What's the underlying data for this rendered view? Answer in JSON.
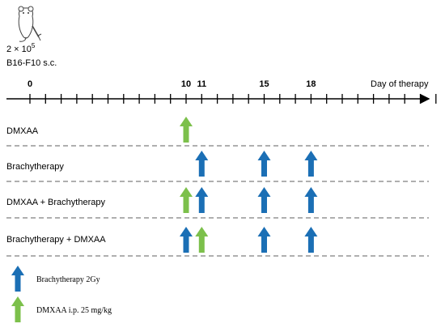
{
  "injection": {
    "dose_base": "2 × 10",
    "dose_exp": "5",
    "cells": "B16-F10 s.c."
  },
  "timeline": {
    "axis_label": "Day of therapy",
    "day_start": 0,
    "day_end": 26,
    "labeled_days": [
      {
        "day": 0,
        "label": "0"
      },
      {
        "day": 10,
        "label": "10"
      },
      {
        "day": 11,
        "label": "11"
      },
      {
        "day": 15,
        "label": "15"
      },
      {
        "day": 18,
        "label": "18"
      }
    ]
  },
  "groups": [
    {
      "label": "DMXAA",
      "arrows": [
        {
          "day": 10,
          "type": "dmxaa"
        }
      ]
    },
    {
      "label": "Brachytherapy",
      "arrows": [
        {
          "day": 11,
          "type": "brachy"
        },
        {
          "day": 15,
          "type": "brachy"
        },
        {
          "day": 18,
          "type": "brachy"
        }
      ]
    },
    {
      "label": "DMXAA + Brachytherapy",
      "arrows": [
        {
          "day": 10,
          "type": "dmxaa"
        },
        {
          "day": 11,
          "type": "brachy"
        },
        {
          "day": 15,
          "type": "brachy"
        },
        {
          "day": 18,
          "type": "brachy"
        }
      ]
    },
    {
      "label": "Brachytherapy + DMXAA",
      "arrows": [
        {
          "day": 10,
          "type": "brachy"
        },
        {
          "day": 11,
          "type": "dmxaa"
        },
        {
          "day": 15,
          "type": "brachy"
        },
        {
          "day": 18,
          "type": "brachy"
        }
      ]
    }
  ],
  "legend": [
    {
      "type": "brachy",
      "label": "Brachytherapy 2Gy"
    },
    {
      "type": "dmxaa",
      "label": "DMXAA i.p. 25 mg/kg"
    }
  ],
  "colors": {
    "brachy": "#1b6fb5",
    "dmxaa": "#7cc04b",
    "line": "#000000",
    "separator": "#7f7f7f"
  },
  "icon": "mouse-syringe-icon"
}
